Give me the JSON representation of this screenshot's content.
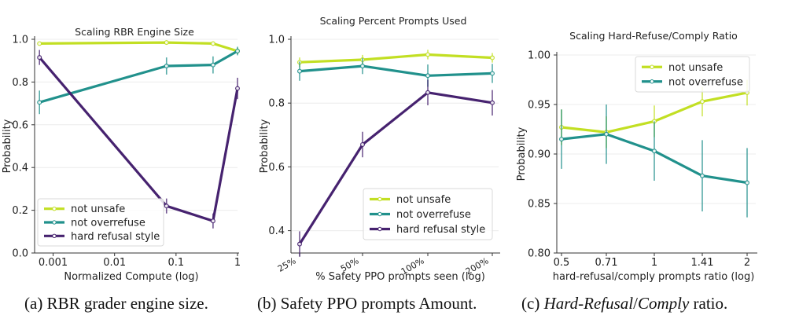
{
  "colors": {
    "lime": "#c2df23",
    "teal": "#21918c",
    "purple": "#46226f",
    "axis": "#333333",
    "grid": "#ececec"
  },
  "chart_data": [
    {
      "type": "line",
      "title": "Scaling RBR Engine Size",
      "xlabel": "Normalized Compute (log)",
      "ylabel": "Probability",
      "x_scale": "log",
      "xlim": [
        0.0005,
        1
      ],
      "ylim": [
        0,
        1.0
      ],
      "x_ticks": [
        0.001,
        0.01,
        0.1,
        1
      ],
      "x_tick_labels": [
        "0.001",
        "0.01",
        "0.1",
        "1"
      ],
      "y_ticks": [
        0,
        0.2,
        0.4,
        0.6,
        0.8,
        1.0
      ],
      "y_tick_labels": [
        "0.0",
        "0.2",
        "0.4",
        "0.6",
        "0.8",
        "1.0"
      ],
      "grid": true,
      "legend_position": "bottom-left",
      "x": [
        0.0006,
        0.07,
        0.4,
        1
      ],
      "series": [
        {
          "name": "not unsafe",
          "color": "#c2df23",
          "values": [
            0.98,
            0.985,
            0.98,
            0.945
          ],
          "err": [
            0.005,
            0.01,
            0.01,
            0.015
          ]
        },
        {
          "name": "not overrefuse",
          "color": "#21918c",
          "values": [
            0.705,
            0.875,
            0.88,
            0.945
          ],
          "err": [
            0.055,
            0.04,
            0.04,
            0.02
          ]
        },
        {
          "name": "hard refusal style",
          "color": "#46226f",
          "values": [
            0.915,
            0.22,
            0.15,
            0.77
          ],
          "err": [
            0.035,
            0.035,
            0.035,
            0.05
          ]
        }
      ]
    },
    {
      "type": "line",
      "title": "Scaling Percent Prompts Used",
      "xlabel": "% Safety PPO prompts seen (log)",
      "ylabel": "Probability",
      "x_scale": "log",
      "categories": [
        "25%",
        "50%",
        "100%",
        "200%"
      ],
      "ylim": [
        0.33,
        1.0
      ],
      "y_ticks": [
        0.4,
        0.6,
        0.8,
        1.0
      ],
      "y_tick_labels": [
        "0.4",
        "0.6",
        "0.8",
        "1.0"
      ],
      "grid": true,
      "legend_position": "bottom-right",
      "series": [
        {
          "name": "not unsafe",
          "color": "#c2df23",
          "values": [
            0.928,
            0.936,
            0.952,
            0.942
          ],
          "err": [
            0.015,
            0.015,
            0.015,
            0.015
          ]
        },
        {
          "name": "not overrefuse",
          "color": "#21918c",
          "values": [
            0.9,
            0.916,
            0.886,
            0.893
          ],
          "err": [
            0.03,
            0.025,
            0.035,
            0.03
          ]
        },
        {
          "name": "hard refusal style",
          "color": "#46226f",
          "values": [
            0.358,
            0.67,
            0.833,
            0.801
          ],
          "err": [
            0.04,
            0.04,
            0.04,
            0.04
          ]
        }
      ]
    },
    {
      "type": "line",
      "title": "Scaling Hard-Refuse/Comply Ratio",
      "xlabel": "hard-refusal/comply prompts ratio (log)",
      "ylabel": "Probability",
      "x_scale": "log",
      "categories": [
        "0.5",
        "0.71",
        "1",
        "1.41",
        "2"
      ],
      "ylim": [
        0.8,
        1.0
      ],
      "y_ticks": [
        0.8,
        0.85,
        0.9,
        0.95,
        1.0
      ],
      "y_tick_labels": [
        "0.80",
        "0.85",
        "0.90",
        "0.95",
        "1.00"
      ],
      "grid": true,
      "legend_position": "top-right",
      "series": [
        {
          "name": "not unsafe",
          "color": "#c2df23",
          "values": [
            0.927,
            0.922,
            0.933,
            0.953,
            0.962
          ],
          "err": [
            0.018,
            0.016,
            0.016,
            0.015,
            0.013
          ]
        },
        {
          "name": "not overrefuse",
          "color": "#21918c",
          "values": [
            0.915,
            0.92,
            0.903,
            0.878,
            0.871
          ],
          "err": [
            0.03,
            0.03,
            0.03,
            0.036,
            0.035
          ]
        }
      ]
    }
  ],
  "captions": {
    "a": "(a) RBR grader engine size.",
    "b": "(b) Safety PPO prompts Amount.",
    "c_prefix": "(c) ",
    "c_italic_1": "Hard-Refusal",
    "c_slash": "/",
    "c_italic_2": "Comply",
    "c_suffix": " ratio."
  }
}
